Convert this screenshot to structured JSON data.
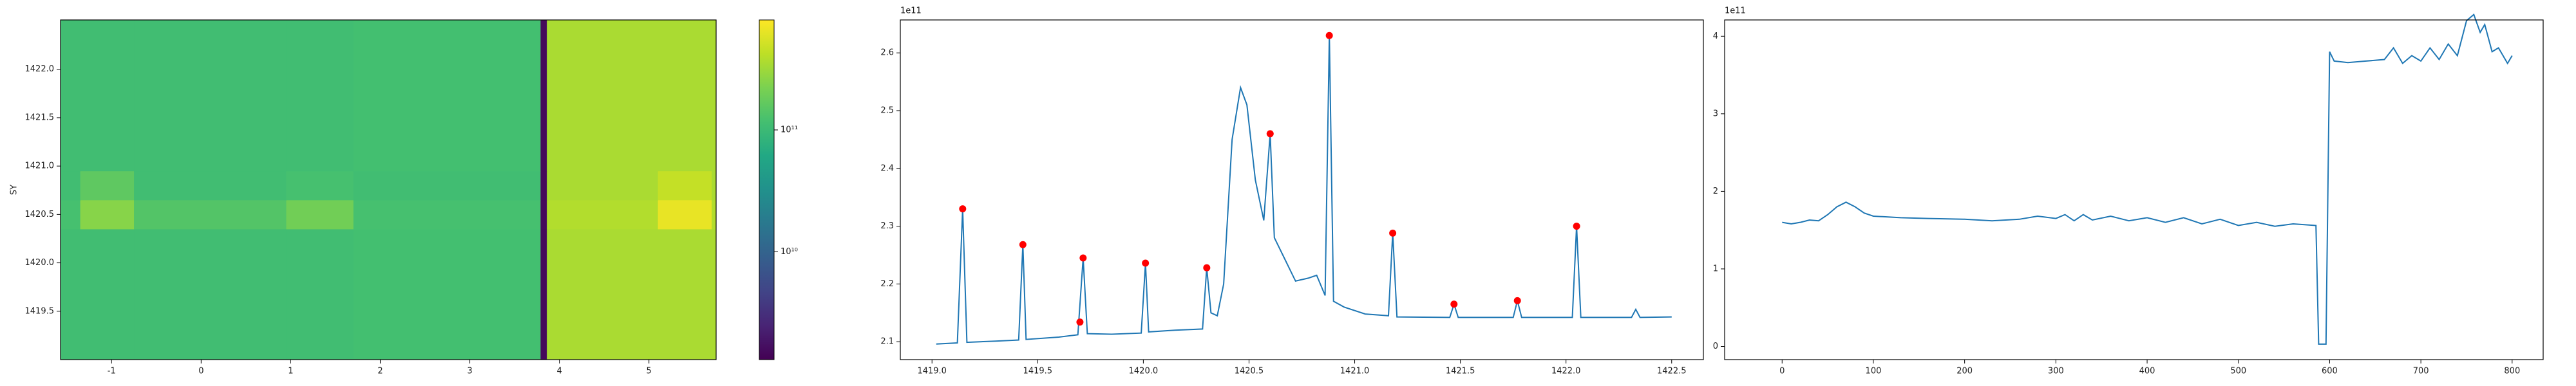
{
  "chart_data": [
    {
      "type": "heatmap",
      "ylabel": "SY",
      "colormap": "viridis",
      "log_color": true,
      "clim": [
        1300000000.0,
        800000000000.0
      ],
      "x": [
        -1.57,
        -1.35,
        -0.75,
        0.95,
        1.7,
        3.79,
        3.86,
        5.1,
        5.7,
        5.75
      ],
      "y": [
        1419.0,
        1420.35,
        1420.65,
        1420.95,
        1422.51
      ],
      "z": [
        [
          110000000000.0,
          110000000000.0,
          110000000000.0,
          110000000000.0,
          115000000000.0,
          1500000000.0,
          350000000000.0,
          350000000000.0,
          350000000000.0
        ],
        [
          120000000000.0,
          250000000000.0,
          140000000000.0,
          200000000000.0,
          120000000000.0,
          1500000000.0,
          380000000000.0,
          650000000000.0,
          380000000000.0
        ],
        [
          110000000000.0,
          160000000000.0,
          110000000000.0,
          120000000000.0,
          110000000000.0,
          1500000000.0,
          350000000000.0,
          450000000000.0,
          350000000000.0
        ],
        [
          110000000000.0,
          110000000000.0,
          110000000000.0,
          110000000000.0,
          115000000000.0,
          1500000000.0,
          350000000000.0,
          350000000000.0,
          350000000000.0
        ]
      ],
      "xlim": [
        -1.57,
        5.75
      ],
      "ylim": [
        1419.0,
        1422.51
      ],
      "xticks": [
        -1,
        0,
        1,
        2,
        3,
        4,
        5
      ],
      "yticks": [
        1419.5,
        {
          "value": 1420.0,
          "label": "1420.0"
        },
        1420.5,
        {
          "value": 1421.0,
          "label": "1421.0"
        },
        1421.5,
        {
          "value": 1422.0,
          "label": "1422.0"
        }
      ],
      "colorbar": {
        "ticks": [
          {
            "value": 10000000000.0,
            "label": "10¹⁰"
          },
          {
            "value": 100000000000.0,
            "label": "10¹¹"
          }
        ]
      }
    },
    {
      "type": "line",
      "offset_text": "1e11",
      "color": "#1f77b4",
      "x": [
        1419.02,
        1419.12,
        1419.145,
        1419.165,
        1419.3,
        1419.41,
        1419.43,
        1419.445,
        1419.6,
        1419.69,
        1419.715,
        1419.735,
        1419.85,
        1419.99,
        1420.01,
        1420.025,
        1420.15,
        1420.28,
        1420.3,
        1420.32,
        1420.35,
        1420.38,
        1420.42,
        1420.46,
        1420.49,
        1420.53,
        1420.57,
        1420.6,
        1420.62,
        1420.66,
        1420.72,
        1420.78,
        1420.82,
        1420.86,
        1420.88,
        1420.9,
        1420.95,
        1421.05,
        1421.16,
        1421.18,
        1421.2,
        1421.45,
        1421.47,
        1421.49,
        1421.75,
        1421.77,
        1421.79,
        1422.03,
        1422.05,
        1422.07,
        1422.31,
        1422.33,
        1422.35,
        1422.5
      ],
      "values": [
        2.096,
        2.098,
        2.33,
        2.099,
        2.101,
        2.103,
        2.268,
        2.104,
        2.108,
        2.112,
        2.245,
        2.114,
        2.113,
        2.115,
        2.236,
        2.117,
        2.12,
        2.122,
        2.228,
        2.15,
        2.145,
        2.2,
        2.45,
        2.54,
        2.51,
        2.38,
        2.31,
        2.46,
        2.28,
        2.25,
        2.205,
        2.21,
        2.215,
        2.18,
        2.63,
        2.17,
        2.16,
        2.148,
        2.145,
        2.288,
        2.143,
        2.142,
        2.165,
        2.142,
        2.142,
        2.171,
        2.142,
        2.142,
        2.3,
        2.142,
        2.142,
        2.156,
        2.142,
        2.143
      ],
      "markers": {
        "color": "red",
        "x": [
          1419.145,
          1419.43,
          1419.7,
          1419.715,
          1420.01,
          1420.3,
          1420.6,
          1420.88,
          1421.18,
          1421.47,
          1421.77,
          1422.05
        ],
        "values": [
          2.33,
          2.268,
          2.134,
          2.245,
          2.236,
          2.228,
          2.46,
          2.63,
          2.288,
          2.165,
          2.171,
          2.3
        ]
      },
      "xlim": [
        1418.85,
        1422.65
      ],
      "ylim": [
        2.069,
        2.657
      ],
      "xticks": [
        {
          "value": 1419.0,
          "label": "1419.0"
        },
        1419.5,
        {
          "value": 1420.0,
          "label": "1420.0"
        },
        1420.5,
        {
          "value": 1421.0,
          "label": "1421.0"
        },
        1421.5,
        {
          "value": 1422.0,
          "label": "1422.0"
        },
        1422.5
      ],
      "yticks": [
        2.1,
        2.2,
        2.3,
        2.4,
        2.5,
        2.6
      ]
    },
    {
      "type": "line",
      "offset_text": "1e11",
      "color": "#1f77b4",
      "x": [
        0,
        10,
        20,
        30,
        40,
        50,
        60,
        70,
        80,
        90,
        100,
        130,
        160,
        200,
        230,
        260,
        280,
        300,
        310,
        320,
        330,
        340,
        360,
        380,
        400,
        420,
        440,
        460,
        480,
        500,
        520,
        540,
        560,
        585,
        588,
        596,
        600,
        605,
        620,
        640,
        660,
        670,
        680,
        690,
        700,
        710,
        720,
        730,
        740,
        750,
        758,
        765,
        770,
        778,
        785,
        790,
        795,
        800
      ],
      "values": [
        1.6,
        1.58,
        1.6,
        1.63,
        1.62,
        1.7,
        1.8,
        1.86,
        1.8,
        1.72,
        1.68,
        1.66,
        1.65,
        1.64,
        1.62,
        1.64,
        1.68,
        1.65,
        1.7,
        1.62,
        1.7,
        1.63,
        1.68,
        1.62,
        1.66,
        1.6,
        1.66,
        1.58,
        1.64,
        1.56,
        1.6,
        1.55,
        1.58,
        1.56,
        0.03,
        0.03,
        3.8,
        3.68,
        3.66,
        3.68,
        3.7,
        3.85,
        3.65,
        3.75,
        3.68,
        3.85,
        3.7,
        3.9,
        3.75,
        4.2,
        4.28,
        4.05,
        4.15,
        3.8,
        3.85,
        3.75,
        3.65,
        3.75
      ],
      "xlim": [
        -63,
        834
      ],
      "ylim": [
        -0.17,
        4.21
      ],
      "xticks": [
        0,
        100,
        200,
        300,
        400,
        500,
        600,
        700,
        800
      ],
      "yticks": [
        0,
        1,
        2,
        3,
        4
      ]
    }
  ]
}
